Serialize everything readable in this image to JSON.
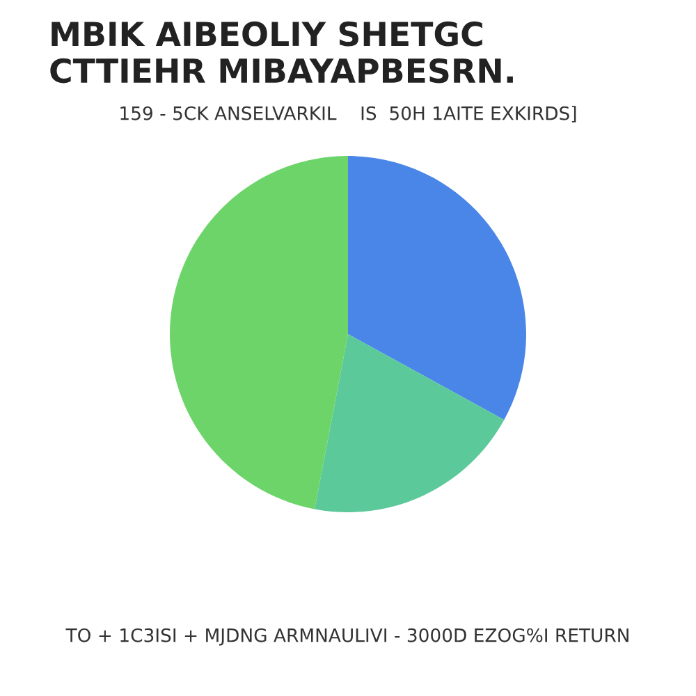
{
  "chart_data": {
    "type": "pie",
    "title": "MBIK AIBEOLIY SHETGC\nCTTIEHR MIBAYAPBESRN.",
    "subtitle": "159 - 5CK ANSELVARKIL    IS  50H 1AITE EXKIRDS]",
    "categories": [
      null,
      null,
      null
    ],
    "values": [
      33,
      20,
      47
    ],
    "colors": [
      "#4a86e8",
      "#5cc99a",
      "#6dd46a"
    ],
    "annotations": [
      "TO + 1C3ISI + MJDNG ARMNAULIVI - 3000D EZOG%I RETURN"
    ]
  }
}
